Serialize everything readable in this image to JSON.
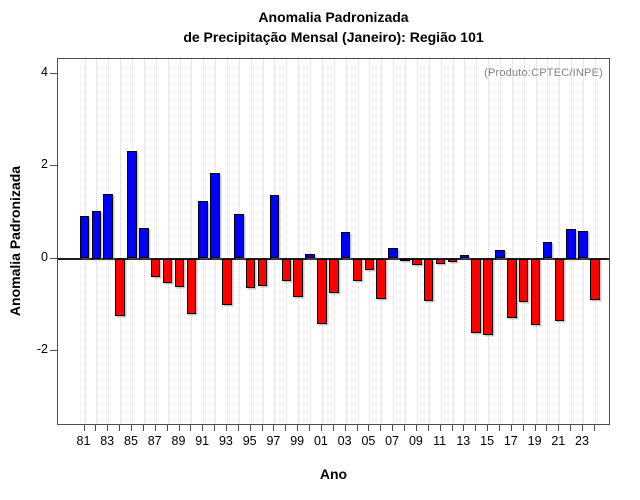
{
  "title": {
    "line1": "Anomalia Padronizada",
    "line2": "de Precipitação Mensal (Janeiro): Região 101"
  },
  "annotation": "(Produto:CPTEC/INPE)",
  "colors": {
    "positive_bar": "#0000ff",
    "negative_bar": "#ff0000",
    "bar_border": "#000000",
    "grid_line": "#d4d4d4",
    "frame": "#4d4d4d",
    "zero_line": "#1c1c1c",
    "annotation_text": "#7f7f7f"
  },
  "chart_data": {
    "type": "bar",
    "title": "Anomalia Padronizada de Precipitação Mensal (Janeiro): Região 101",
    "xlabel": "Ano",
    "ylabel": "Anomalia Padronizada",
    "grid": "vertical-dotted",
    "legend": "none",
    "yticks": [
      4,
      2,
      0,
      -2
    ],
    "ylim": [
      -3.6,
      4.35
    ],
    "x_tick_labels": [
      "81",
      "83",
      "85",
      "87",
      "89",
      "91",
      "93",
      "95",
      "97",
      "99",
      "01",
      "03",
      "05",
      "07",
      "09",
      "11",
      "13",
      "15",
      "17",
      "19",
      "21",
      "23"
    ],
    "years": [
      1981,
      1982,
      1983,
      1984,
      1985,
      1986,
      1987,
      1988,
      1989,
      1990,
      1991,
      1992,
      1993,
      1994,
      1995,
      1996,
      1997,
      1998,
      1999,
      2000,
      2001,
      2002,
      2003,
      2004,
      2005,
      2006,
      2007,
      2008,
      2009,
      2010,
      2011,
      2012,
      2013,
      2014,
      2015,
      2016,
      2017,
      2018,
      2019,
      2020,
      2021,
      2022,
      2023,
      2024
    ],
    "values": [
      0.92,
      1.03,
      1.4,
      -1.25,
      2.33,
      0.67,
      -0.41,
      -0.52,
      -0.61,
      -1.21,
      1.24,
      1.86,
      -1.0,
      0.97,
      -0.64,
      -0.59,
      1.37,
      -0.48,
      -0.84,
      0.09,
      -1.41,
      -0.74,
      0.57,
      -0.48,
      -0.24,
      -0.88,
      0.22,
      -0.04,
      -0.14,
      -0.92,
      -0.12,
      -0.07,
      0.08,
      -1.62,
      -1.66,
      0.19,
      -1.28,
      -0.95,
      -1.45,
      0.36,
      -1.35,
      0.65,
      0.6,
      -0.89
    ]
  }
}
